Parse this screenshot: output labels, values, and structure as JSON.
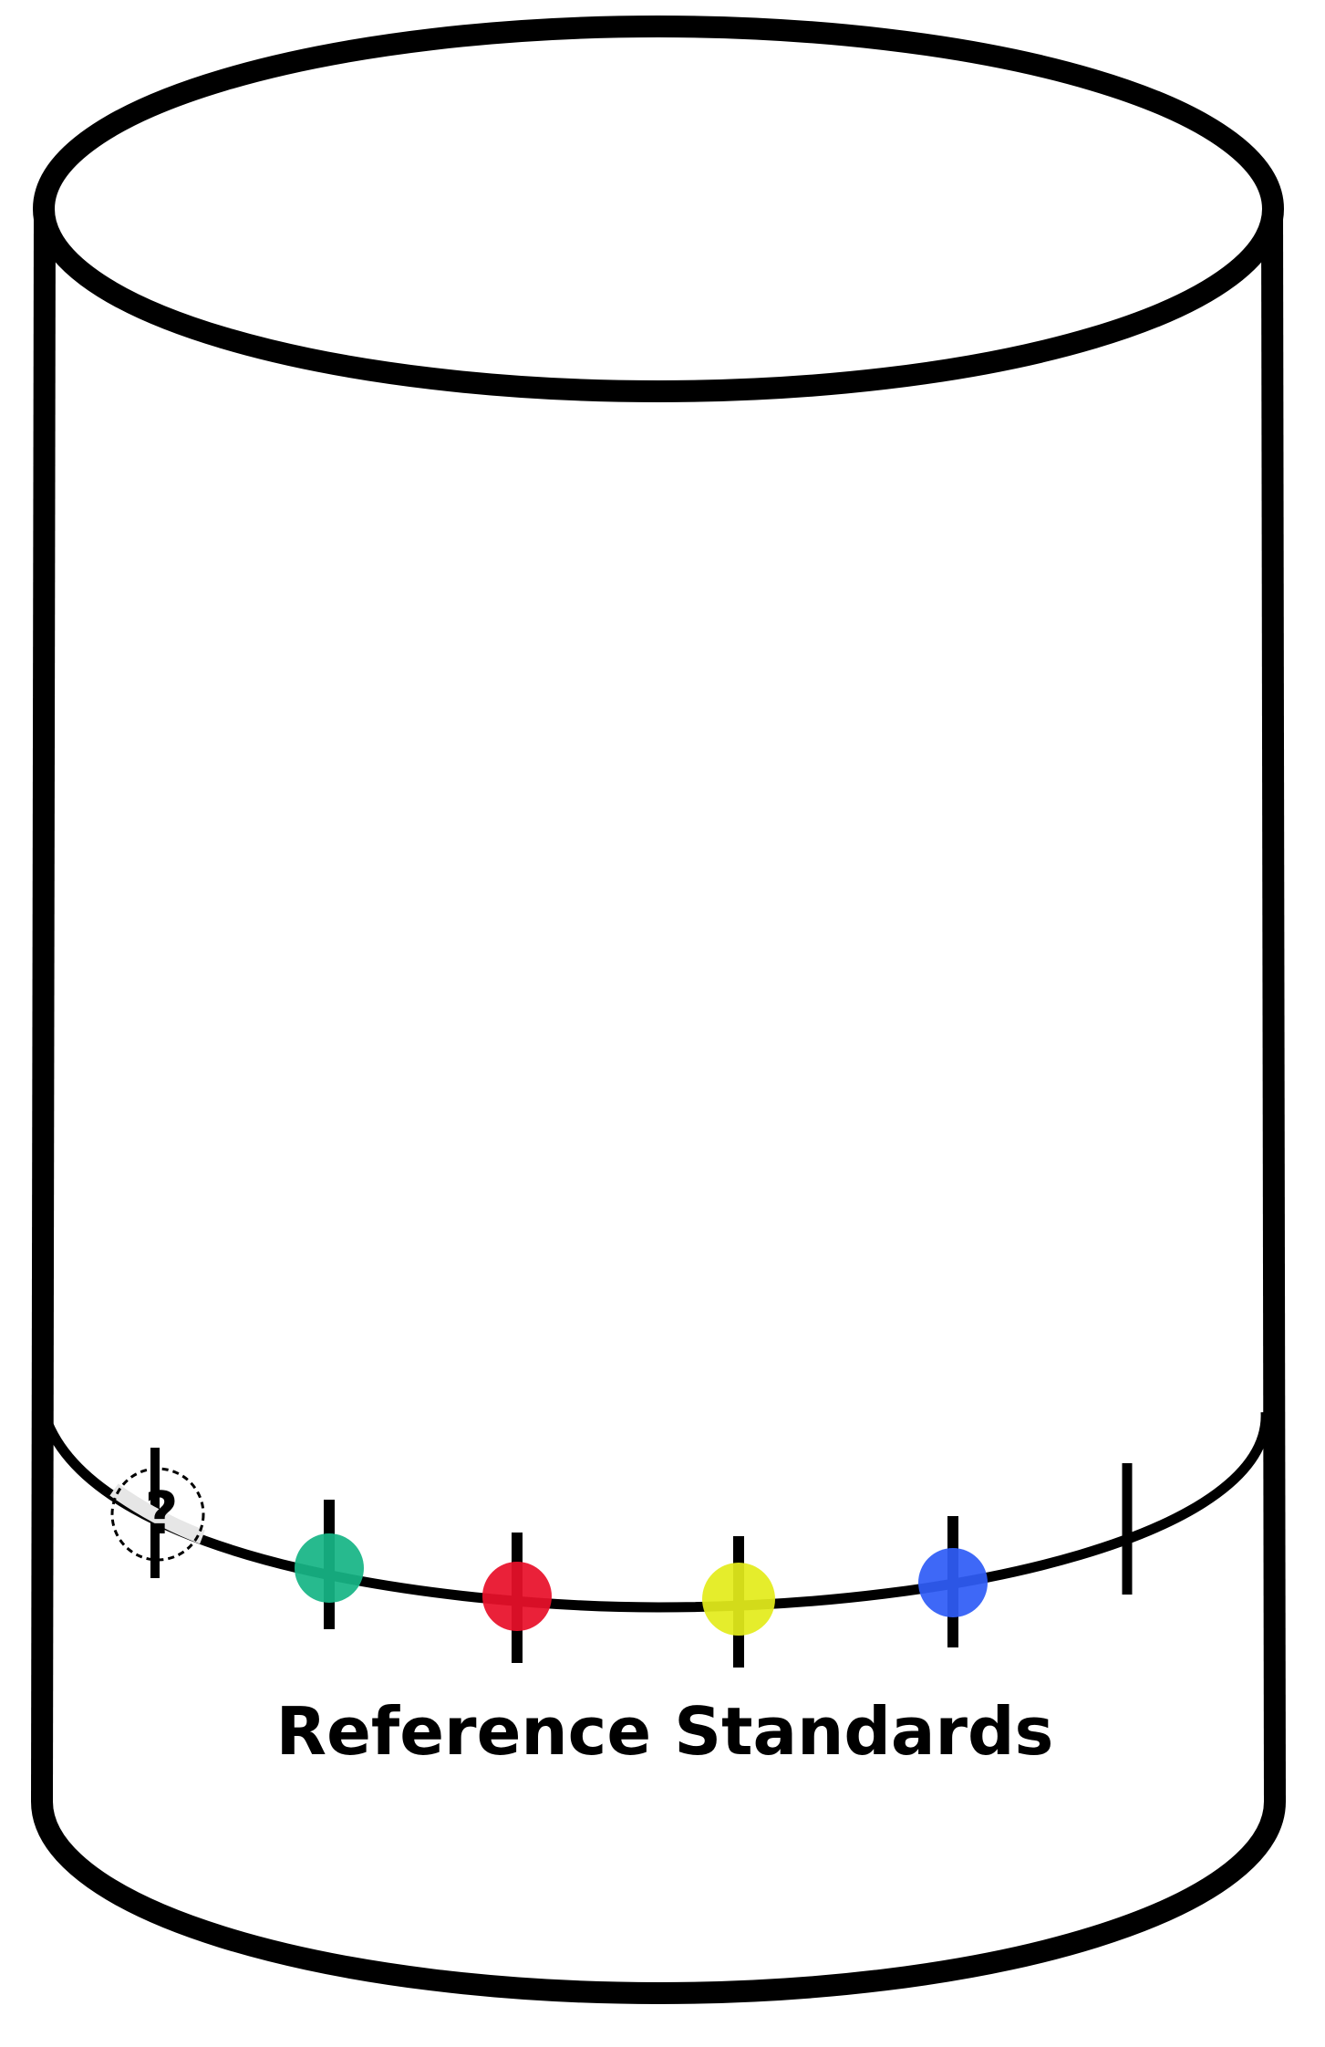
{
  "diagram": {
    "caption": "Reference Standards",
    "unknown_marker": "?",
    "stroke_color": "#000000",
    "background_color": "#ffffff",
    "unknown_fill": "#e6e6e6",
    "standards": [
      {
        "name": "green-standard",
        "color": "#17b585"
      },
      {
        "name": "red-standard",
        "color": "#e8102a"
      },
      {
        "name": "yellow-standard",
        "color": "#e3ec1c"
      },
      {
        "name": "blue-standard",
        "color": "#2f5cf6"
      }
    ]
  }
}
